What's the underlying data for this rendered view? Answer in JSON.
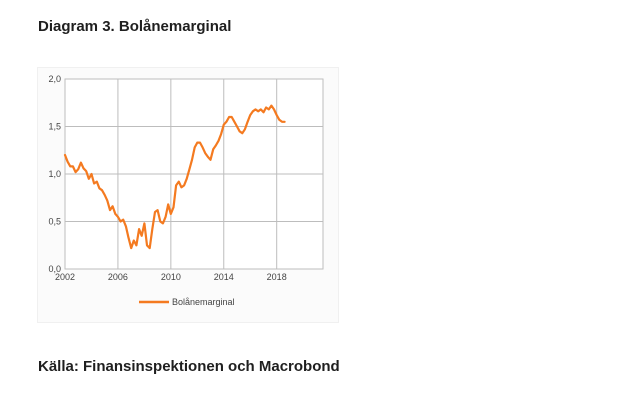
{
  "page": {
    "title": "Diagram 3. Bolånemarginal",
    "source": "Källa: Finansinspektionen och Macrobond"
  },
  "chart_data": {
    "type": "line",
    "title": "",
    "xlabel": "",
    "ylabel": "",
    "xlim": [
      2002,
      2021.5
    ],
    "ylim": [
      0,
      2
    ],
    "x_ticks": [
      2002,
      2006,
      2010,
      2014,
      2018
    ],
    "x_tick_labels": [
      "2002",
      "2006",
      "2010",
      "2014",
      "2018"
    ],
    "y_ticks": [
      0,
      0.5,
      1,
      1.5,
      2
    ],
    "y_tick_labels": [
      "0,0",
      "0,5",
      "1,0",
      "1,5",
      "2,0"
    ],
    "grid": true,
    "legend_position": "bottom",
    "series": [
      {
        "name": "Bolånemarginal",
        "color": "#f47a20",
        "x": [
          2002.0,
          2002.2,
          2002.4,
          2002.6,
          2002.8,
          2003.0,
          2003.2,
          2003.4,
          2003.6,
          2003.8,
          2004.0,
          2004.2,
          2004.4,
          2004.6,
          2004.8,
          2005.0,
          2005.2,
          2005.4,
          2005.6,
          2005.8,
          2006.0,
          2006.2,
          2006.4,
          2006.6,
          2006.8,
          2007.0,
          2007.2,
          2007.4,
          2007.6,
          2007.8,
          2008.0,
          2008.2,
          2008.4,
          2008.6,
          2008.8,
          2009.0,
          2009.2,
          2009.4,
          2009.6,
          2009.8,
          2010.0,
          2010.2,
          2010.4,
          2010.6,
          2010.8,
          2011.0,
          2011.2,
          2011.4,
          2011.6,
          2011.8,
          2012.0,
          2012.2,
          2012.4,
          2012.6,
          2012.8,
          2013.0,
          2013.2,
          2013.4,
          2013.6,
          2013.8,
          2014.0,
          2014.2,
          2014.4,
          2014.6,
          2014.8,
          2015.0,
          2015.2,
          2015.4,
          2015.6,
          2015.8,
          2016.0,
          2016.2,
          2016.4,
          2016.6,
          2016.8,
          2017.0,
          2017.2,
          2017.4,
          2017.6,
          2017.8,
          2018.0,
          2018.2,
          2018.4,
          2018.6
        ],
        "y": [
          1.2,
          1.13,
          1.08,
          1.08,
          1.02,
          1.05,
          1.12,
          1.06,
          1.03,
          0.95,
          1.0,
          0.9,
          0.92,
          0.85,
          0.83,
          0.78,
          0.72,
          0.62,
          0.66,
          0.58,
          0.55,
          0.5,
          0.52,
          0.45,
          0.33,
          0.22,
          0.3,
          0.25,
          0.42,
          0.35,
          0.48,
          0.25,
          0.22,
          0.42,
          0.6,
          0.62,
          0.5,
          0.48,
          0.55,
          0.68,
          0.58,
          0.65,
          0.88,
          0.92,
          0.86,
          0.88,
          0.95,
          1.05,
          1.15,
          1.28,
          1.33,
          1.33,
          1.28,
          1.22,
          1.18,
          1.15,
          1.26,
          1.3,
          1.35,
          1.42,
          1.52,
          1.55,
          1.6,
          1.6,
          1.55,
          1.5,
          1.45,
          1.43,
          1.47,
          1.55,
          1.62,
          1.66,
          1.68,
          1.66,
          1.68,
          1.65,
          1.7,
          1.68,
          1.72,
          1.68,
          1.62,
          1.57,
          1.55,
          1.55
        ]
      }
    ]
  }
}
